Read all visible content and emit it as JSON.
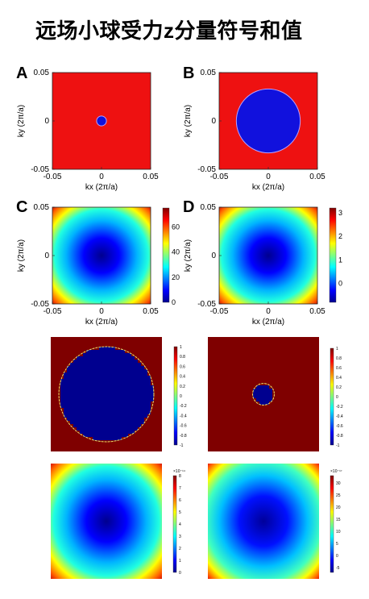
{
  "title": "远场小球受力z分量符号和值",
  "panel_letters": [
    "A",
    "B",
    "C",
    "D"
  ],
  "colors": {
    "red": "#ee1111",
    "blue": "#1111dd",
    "dark_red": "#7f0000",
    "dark_blue": "#00008f"
  },
  "chart_data": [
    {
      "id": "A",
      "type": "heatmap",
      "letter": "A",
      "xlabel": "kx (2π/a)",
      "ylabel": "ky (2π/a)",
      "xlim": [
        -0.05,
        0.05
      ],
      "ylim": [
        -0.05,
        0.05
      ],
      "xticks": [
        "-0.05",
        "0",
        "0.05"
      ],
      "yticks": [
        "0.05",
        "0",
        "-0.05"
      ],
      "pattern": "binary sign map: blue disk in red field",
      "disk_radius": 0.005,
      "colorbar": null
    },
    {
      "id": "B",
      "type": "heatmap",
      "letter": "B",
      "xlabel": "kx (2π/a)",
      "ylabel": "ky (2π/a)",
      "xlim": [
        -0.05,
        0.05
      ],
      "ylim": [
        -0.05,
        0.05
      ],
      "xticks": [
        "-0.05",
        "0",
        "0.05"
      ],
      "yticks": [
        "0.05",
        "0",
        "-0.05"
      ],
      "pattern": "binary sign map: blue disk in red field",
      "disk_radius": 0.0325,
      "colorbar": null
    },
    {
      "id": "C",
      "type": "heatmap",
      "letter": "C",
      "xlabel": "kx (2π/a)",
      "ylabel": "ky (2π/a)",
      "xlim": [
        -0.05,
        0.05
      ],
      "ylim": [
        -0.05,
        0.05
      ],
      "xticks": [
        "-0.05",
        "0",
        "0.05"
      ],
      "yticks": [
        "0.05",
        "0",
        "-0.05"
      ],
      "pattern": "radial jet colormap, minimum at center",
      "colorbar": {
        "range": [
          0,
          75
        ],
        "ticks": [
          "60",
          "40",
          "20",
          "0"
        ]
      }
    },
    {
      "id": "D",
      "type": "heatmap",
      "letter": "D",
      "xlabel": "kx (2π/a)",
      "ylabel": "ky (2π/a)",
      "xlim": [
        -0.05,
        0.05
      ],
      "ylim": [
        -0.05,
        0.05
      ],
      "xticks": [
        "-0.05",
        "0",
        "0.05"
      ],
      "yticks": [
        "0.05",
        "0",
        "-0.05"
      ],
      "pattern": "radial jet colormap, minimum at center",
      "colorbar": {
        "range": [
          -0.8,
          3.2
        ],
        "ticks": [
          "3",
          "2",
          "1",
          "0"
        ]
      }
    },
    {
      "id": "E",
      "type": "heatmap",
      "pattern": "pixelated sign map: large dark-blue disk in dark-red field",
      "disk_radius_fraction": 0.42,
      "colorbar": {
        "range": [
          -1,
          1
        ],
        "ticks": [
          "1",
          "0.8",
          "0.6",
          "0.4",
          "0.2",
          "0",
          "-0.2",
          "-0.4",
          "-0.6",
          "-0.8",
          "-1"
        ]
      }
    },
    {
      "id": "F",
      "type": "heatmap",
      "pattern": "pixelated sign map: small dark-blue disk in dark-red field",
      "disk_radius_fraction": 0.09,
      "colorbar": {
        "range": [
          -1,
          1
        ],
        "ticks": [
          "1",
          "0.8",
          "0.6",
          "0.4",
          "0.2",
          "0",
          "-0.2",
          "-0.4",
          "-0.6",
          "-0.8",
          "-1"
        ]
      }
    },
    {
      "id": "G",
      "type": "heatmap",
      "pattern": "radial jet colormap, minimum at center",
      "colorbar": {
        "exponent_label": "×10⁻¹⁴",
        "range": [
          0,
          8
        ],
        "ticks": [
          "8",
          "7",
          "6",
          "5",
          "4",
          "3",
          "2",
          "1",
          "0"
        ]
      }
    },
    {
      "id": "H",
      "type": "heatmap",
      "pattern": "radial jet colormap, minimum at center",
      "colorbar": {
        "exponent_label": "×10⁻¹⁷",
        "range": [
          -7,
          33
        ],
        "ticks": [
          "30",
          "25",
          "20",
          "15",
          "10",
          "5",
          "0",
          "-5"
        ]
      }
    }
  ]
}
